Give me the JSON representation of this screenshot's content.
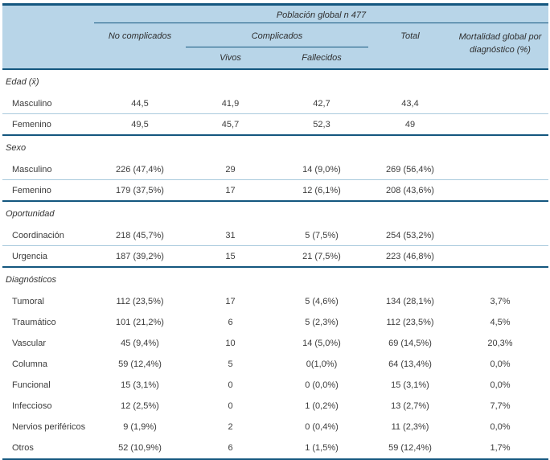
{
  "table": {
    "colors": {
      "header_bg": "#b8d5e8",
      "rule_dark": "#14577f",
      "rule_light": "#aacadd",
      "text": "#3c3c3c"
    },
    "header": {
      "population_title": "Población global n 477",
      "col_no_complicados": "No complicados",
      "col_complicados": "Complicados",
      "col_vivos": "Vivos",
      "col_fallecidos": "Fallecidos",
      "col_total": "Total",
      "col_mortalidad_line1": "Mortalidad global por",
      "col_mortalidad_line2": "diagnóstico (%)"
    },
    "sections": [
      {
        "title": "Edad (x̄)",
        "rows": [
          {
            "label": "Masculino",
            "no_complicados": "44,5",
            "vivos": "41,9",
            "fallecidos": "42,7",
            "total": "43,4",
            "mortalidad": ""
          },
          {
            "label": "Femenino",
            "no_complicados": "49,5",
            "vivos": "45,7",
            "fallecidos": "52,3",
            "total": "49",
            "mortalidad": ""
          }
        ]
      },
      {
        "title": "Sexo",
        "rows": [
          {
            "label": "Masculino",
            "no_complicados": "226 (47,4%)",
            "vivos": "29",
            "fallecidos": "14 (9,0%)",
            "total": "269 (56,4%)",
            "mortalidad": ""
          },
          {
            "label": "Femenino",
            "no_complicados": "179 (37,5%)",
            "vivos": "17",
            "fallecidos": "12 (6,1%)",
            "total": "208 (43,6%)",
            "mortalidad": ""
          }
        ]
      },
      {
        "title": "Oportunidad",
        "rows": [
          {
            "label": "Coordinación",
            "no_complicados": "218 (45,7%)",
            "vivos": "31",
            "fallecidos": "5 (7,5%)",
            "total": "254 (53,2%)",
            "mortalidad": ""
          },
          {
            "label": "Urgencia",
            "no_complicados": "187 (39,2%)",
            "vivos": "15",
            "fallecidos": "21 (7,5%)",
            "total": "223 (46,8%)",
            "mortalidad": ""
          }
        ]
      },
      {
        "title": "Diagnósticos",
        "rows": [
          {
            "label": "Tumoral",
            "no_complicados": "112 (23,5%)",
            "vivos": "17",
            "fallecidos": "5 (4,6%)",
            "total": "134 (28,1%)",
            "mortalidad": "3,7%"
          },
          {
            "label": "Traumático",
            "no_complicados": "101 (21,2%)",
            "vivos": "6",
            "fallecidos": "5 (2,3%)",
            "total": "112 (23,5%)",
            "mortalidad": "4,5%"
          },
          {
            "label": "Vascular",
            "no_complicados": "45 (9,4%)",
            "vivos": "10",
            "fallecidos": "14 (5,0%)",
            "total": "69 (14,5%)",
            "mortalidad": "20,3%"
          },
          {
            "label": "Columna",
            "no_complicados": "59 (12,4%)",
            "vivos": "5",
            "fallecidos": "0(1,0%)",
            "total": "64 (13,4%)",
            "mortalidad": "0,0%"
          },
          {
            "label": "Funcional",
            "no_complicados": "15 (3,1%)",
            "vivos": "0",
            "fallecidos": "0 (0,0%)",
            "total": "15 (3,1%)",
            "mortalidad": "0,0%"
          },
          {
            "label": "Infeccioso",
            "no_complicados": "12 (2,5%)",
            "vivos": "0",
            "fallecidos": "1 (0,2%)",
            "total": "13 (2,7%)",
            "mortalidad": "7,7%"
          },
          {
            "label": "Nervios periféricos",
            "no_complicados": "9 (1,9%)",
            "vivos": "2",
            "fallecidos": "0 (0,4%)",
            "total": "11 (2,3%)",
            "mortalidad": "0,0%"
          },
          {
            "label": "Otros",
            "no_complicados": "52 (10,9%)",
            "vivos": "6",
            "fallecidos": "1 (1,5%)",
            "total": "59 (12,4%)",
            "mortalidad": "1,7%"
          }
        ]
      }
    ]
  }
}
